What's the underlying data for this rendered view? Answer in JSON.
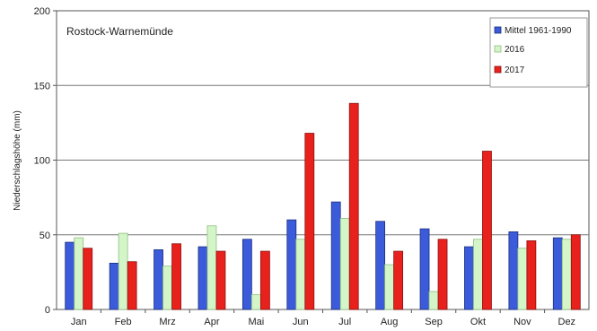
{
  "chart_data": {
    "type": "bar",
    "annotation": "Rostock-Warnemünde",
    "title": "",
    "xlabel": "",
    "ylabel": "Niederschlagshöhe (mm)",
    "ylim": [
      0,
      200
    ],
    "yticks": [
      0,
      50,
      100,
      150,
      200
    ],
    "grid": true,
    "legend_position": "top-right",
    "categories": [
      "Jan",
      "Feb",
      "Mrz",
      "Apr",
      "Mai",
      "Jun",
      "Jul",
      "Aug",
      "Sep",
      "Okt",
      "Nov",
      "Dez"
    ],
    "series": [
      {
        "name": "Mittel 1961-1990",
        "color": "#3b5bdb",
        "edge": "#1c2f7a",
        "values": [
          45,
          31,
          40,
          42,
          47,
          60,
          72,
          59,
          54,
          42,
          52,
          48
        ]
      },
      {
        "name": "2016",
        "color": "#d3f5c8",
        "edge": "#8fbf80",
        "values": [
          48,
          51,
          29,
          56,
          10,
          47,
          61,
          30,
          12,
          47,
          41,
          47
        ]
      },
      {
        "name": "2017",
        "color": "#e8211d",
        "edge": "#8a1210",
        "values": [
          41,
          32,
          44,
          39,
          39,
          118,
          138,
          39,
          47,
          106,
          46,
          50
        ]
      }
    ]
  }
}
